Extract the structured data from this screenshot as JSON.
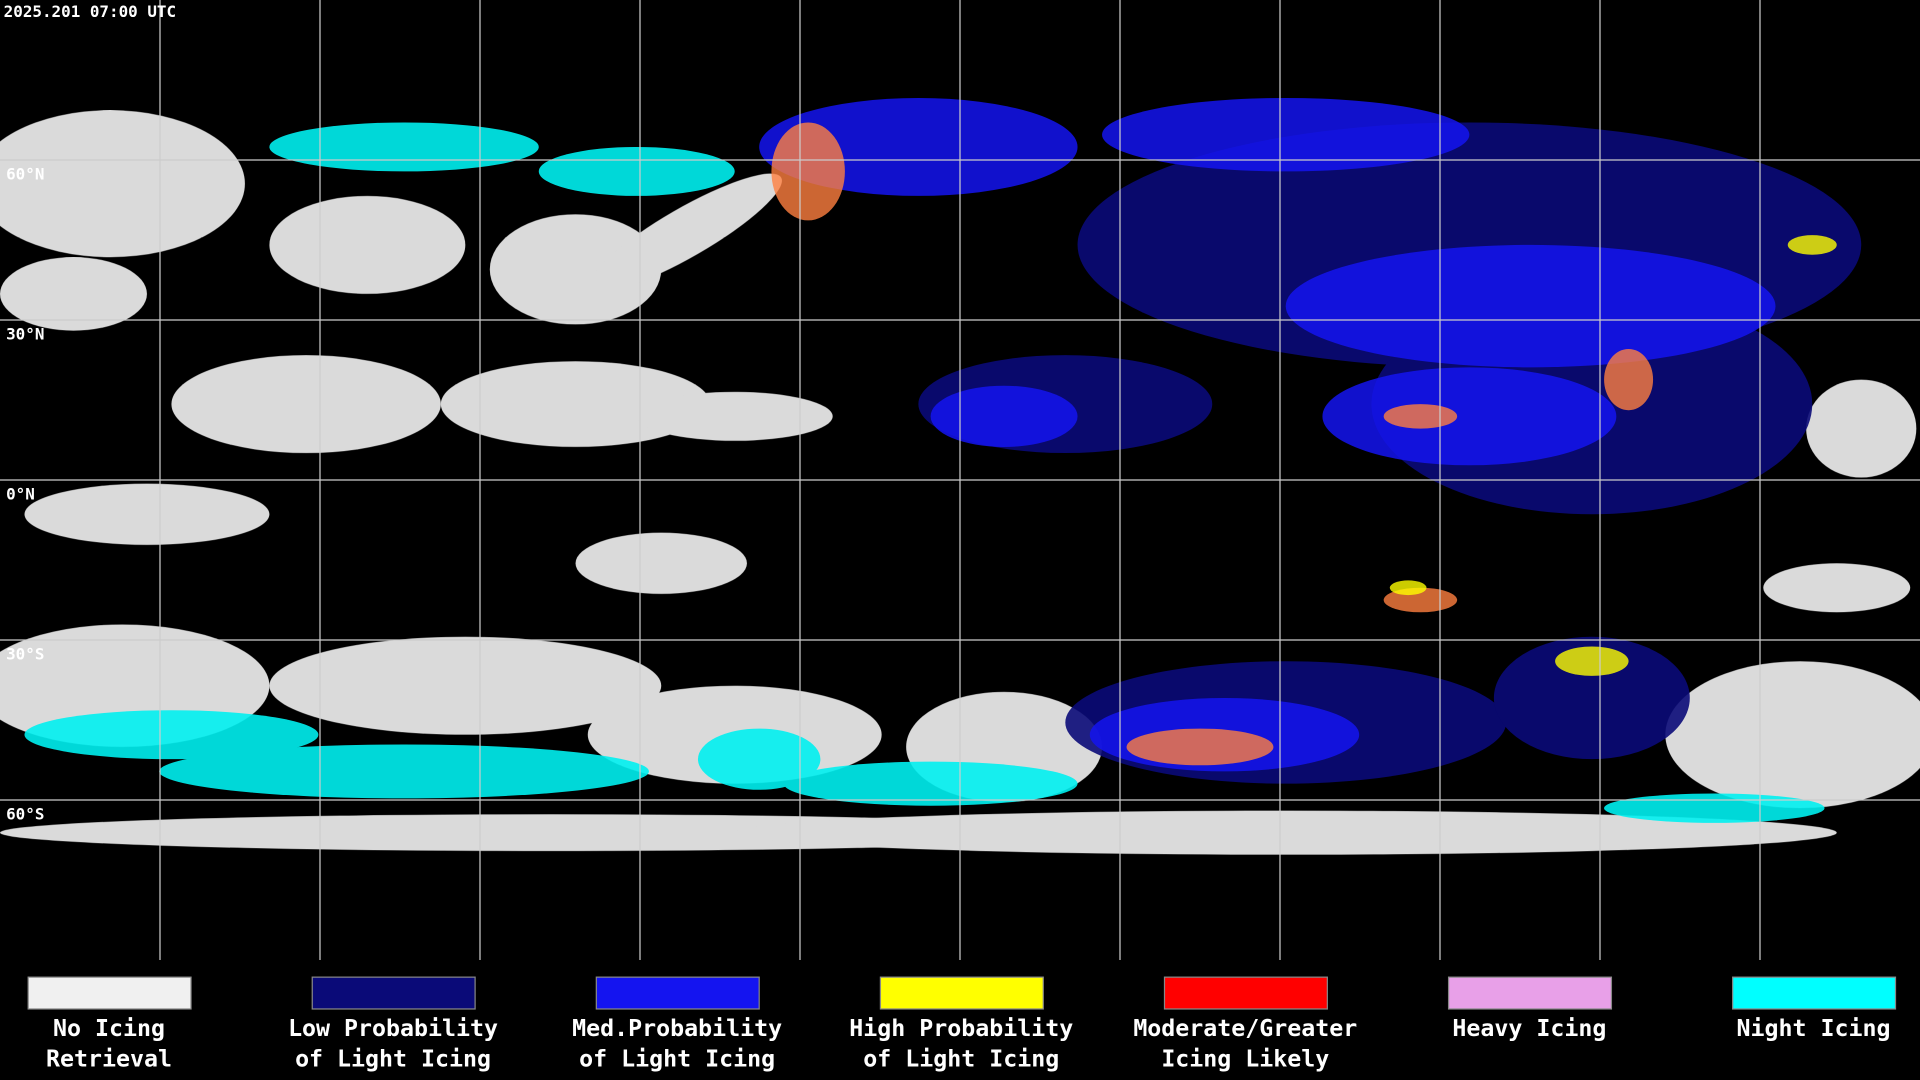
{
  "timestamp": "2025.201 07:00 UTC",
  "latitude_labels": [
    "60°N",
    "30°N",
    "0°N",
    "30°S",
    "60°S"
  ],
  "legend": {
    "items": [
      {
        "lines": [
          "No Icing",
          "Retrieval"
        ],
        "color": "#f0f0f0"
      },
      {
        "lines": [
          "Low Probability",
          "of Light Icing"
        ],
        "color": "#0a0a78"
      },
      {
        "lines": [
          "Med.Probability",
          "of Light Icing"
        ],
        "color": "#1414f0"
      },
      {
        "lines": [
          "High Probability",
          "of Light Icing"
        ],
        "color": "#ffff00"
      },
      {
        "lines": [
          "Moderate/Greater",
          "Icing Likely"
        ],
        "color": "#ff0000"
      },
      {
        "lines": [
          "Heavy Icing"
        ],
        "color": "#e8a0e8"
      },
      {
        "lines": [
          "Night Icing"
        ],
        "color": "#00ffff"
      }
    ]
  }
}
